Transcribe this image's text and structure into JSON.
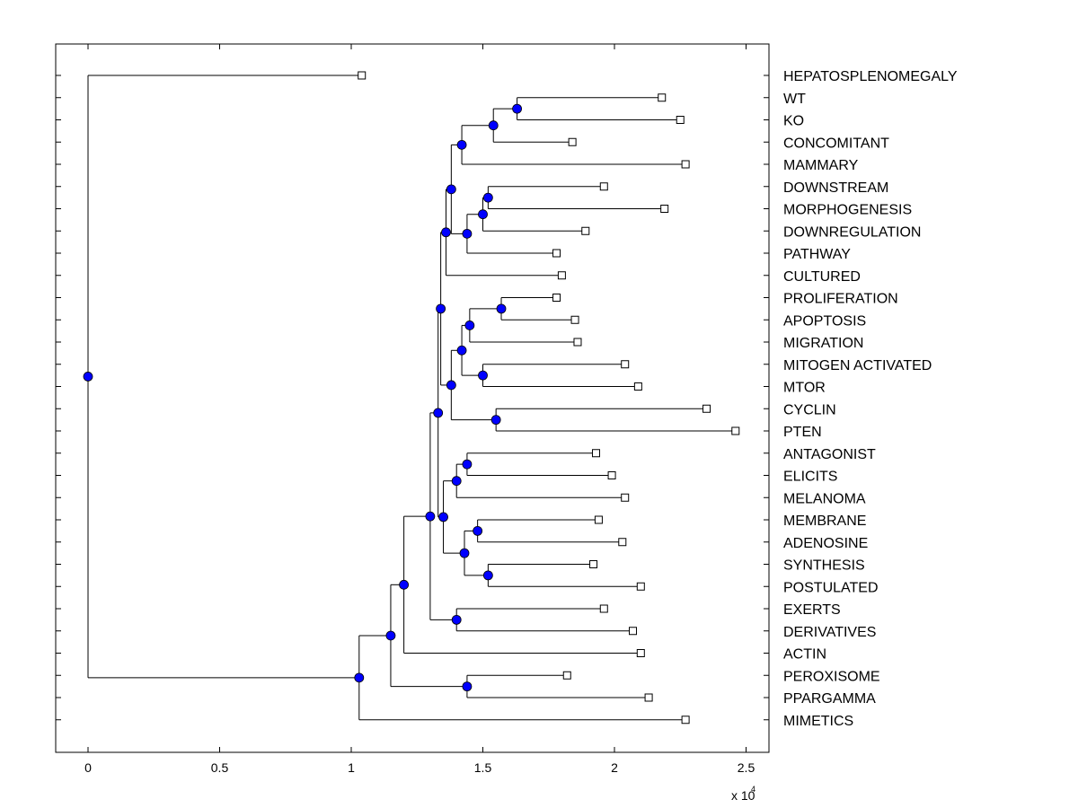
{
  "chart_data": {
    "type": "dendrogram",
    "title": "",
    "xlabel": "",
    "ylabel": "",
    "x_multiplier_base": "x 10",
    "x_multiplier_exponent": "4",
    "xlim": [
      -0.12,
      2.58
    ],
    "x_ticks": [
      {
        "value": 0,
        "label": "0"
      },
      {
        "value": 0.5,
        "label": "0.5"
      },
      {
        "value": 1,
        "label": "1"
      },
      {
        "value": 1.5,
        "label": "1.5"
      },
      {
        "value": 2,
        "label": "2"
      },
      {
        "value": 2.5,
        "label": "2.5"
      }
    ],
    "leaves": [
      {
        "id": "L1",
        "label": "HEPATOSPLENOMEGALY",
        "value": 1.04
      },
      {
        "id": "L2",
        "label": "WT",
        "value": 2.18
      },
      {
        "id": "L3",
        "label": "KO",
        "value": 2.25
      },
      {
        "id": "L4",
        "label": "CONCOMITANT",
        "value": 1.84
      },
      {
        "id": "L5",
        "label": "MAMMARY",
        "value": 2.27
      },
      {
        "id": "L6",
        "label": "DOWNSTREAM",
        "value": 1.96
      },
      {
        "id": "L7",
        "label": "MORPHOGENESIS",
        "value": 2.19
      },
      {
        "id": "L8",
        "label": "DOWNREGULATION",
        "value": 1.89
      },
      {
        "id": "L9",
        "label": "PATHWAY",
        "value": 1.78
      },
      {
        "id": "L10",
        "label": "CULTURED",
        "value": 1.8
      },
      {
        "id": "L11",
        "label": "PROLIFERATION",
        "value": 1.78
      },
      {
        "id": "L12",
        "label": "APOPTOSIS",
        "value": 1.85
      },
      {
        "id": "L13",
        "label": "MIGRATION",
        "value": 1.86
      },
      {
        "id": "L14",
        "label": "MITOGEN ACTIVATED",
        "value": 2.04
      },
      {
        "id": "L15",
        "label": "MTOR",
        "value": 2.09
      },
      {
        "id": "L16",
        "label": "CYCLIN",
        "value": 2.35
      },
      {
        "id": "L17",
        "label": "PTEN",
        "value": 2.46
      },
      {
        "id": "L18",
        "label": "ANTAGONIST",
        "value": 1.93
      },
      {
        "id": "L19",
        "label": "ELICITS",
        "value": 1.99
      },
      {
        "id": "L20",
        "label": "MELANOMA",
        "value": 2.04
      },
      {
        "id": "L21",
        "label": "MEMBRANE",
        "value": 1.94
      },
      {
        "id": "L22",
        "label": "ADENOSINE",
        "value": 2.03
      },
      {
        "id": "L23",
        "label": "SYNTHESIS",
        "value": 1.92
      },
      {
        "id": "L24",
        "label": "POSTULATED",
        "value": 2.1
      },
      {
        "id": "L25",
        "label": "EXERTS",
        "value": 1.96
      },
      {
        "id": "L26",
        "label": "DERIVATIVES",
        "value": 2.07
      },
      {
        "id": "L27",
        "label": "ACTIN",
        "value": 2.1
      },
      {
        "id": "L28",
        "label": "PEROXISOME",
        "value": 1.82
      },
      {
        "id": "L29",
        "label": "PPARGAMMA",
        "value": 2.13
      },
      {
        "id": "L30",
        "label": "MIMETICS",
        "value": 2.27
      }
    ],
    "nodes": [
      {
        "id": "n_wt_ko",
        "value": 1.63,
        "children": [
          "L2",
          "L3"
        ]
      },
      {
        "id": "n_conc",
        "value": 1.54,
        "children": [
          "n_wt_ko",
          "L4"
        ]
      },
      {
        "id": "n_mamm",
        "value": 1.42,
        "children": [
          "n_conc",
          "L5"
        ]
      },
      {
        "id": "n_down_morph",
        "value": 1.52,
        "children": [
          "L6",
          "L7"
        ]
      },
      {
        "id": "n_downreg",
        "value": 1.5,
        "children": [
          "n_down_morph",
          "L8"
        ]
      },
      {
        "id": "n_pathway",
        "value": 1.44,
        "children": [
          "n_downreg",
          "L9"
        ]
      },
      {
        "id": "n_A",
        "value": 1.38,
        "children": [
          "n_mamm",
          "n_pathway"
        ]
      },
      {
        "id": "n_cultured",
        "value": 1.36,
        "children": [
          "n_A",
          "L10"
        ]
      },
      {
        "id": "n_prolif_apop",
        "value": 1.57,
        "children": [
          "L11",
          "L12"
        ]
      },
      {
        "id": "n_migr",
        "value": 1.45,
        "children": [
          "n_prolif_apop",
          "L13"
        ]
      },
      {
        "id": "n_mito_mtor",
        "value": 1.5,
        "children": [
          "L14",
          "L15"
        ]
      },
      {
        "id": "n_B",
        "value": 1.42,
        "children": [
          "n_migr",
          "n_mito_mtor"
        ]
      },
      {
        "id": "n_cyc_pten",
        "value": 1.55,
        "children": [
          "L16",
          "L17"
        ]
      },
      {
        "id": "n_C",
        "value": 1.38,
        "children": [
          "n_B",
          "n_cyc_pten"
        ]
      },
      {
        "id": "n_D",
        "value": 1.34,
        "children": [
          "n_cultured",
          "n_C"
        ]
      },
      {
        "id": "n_ant_eli",
        "value": 1.44,
        "children": [
          "L18",
          "L19"
        ]
      },
      {
        "id": "n_mel",
        "value": 1.4,
        "children": [
          "n_ant_eli",
          "L20"
        ]
      },
      {
        "id": "n_mem_aden",
        "value": 1.48,
        "children": [
          "L21",
          "L22"
        ]
      },
      {
        "id": "n_syn_post",
        "value": 1.52,
        "children": [
          "L23",
          "L24"
        ]
      },
      {
        "id": "n_E",
        "value": 1.43,
        "children": [
          "n_mem_aden",
          "n_syn_post"
        ]
      },
      {
        "id": "n_F",
        "value": 1.35,
        "children": [
          "n_mel",
          "n_E"
        ]
      },
      {
        "id": "n_G",
        "value": 1.33,
        "children": [
          "n_D",
          "n_F"
        ]
      },
      {
        "id": "n_exe_der",
        "value": 1.4,
        "children": [
          "L25",
          "L26"
        ]
      },
      {
        "id": "n_H",
        "value": 1.3,
        "children": [
          "n_G",
          "n_exe_der"
        ]
      },
      {
        "id": "n_I",
        "value": 1.2,
        "children": [
          "n_H",
          "L27"
        ]
      },
      {
        "id": "n_pero_ppar",
        "value": 1.44,
        "children": [
          "L28",
          "L29"
        ]
      },
      {
        "id": "n_J",
        "value": 1.15,
        "children": [
          "n_I",
          "n_pero_ppar"
        ]
      },
      {
        "id": "n_K",
        "value": 1.03,
        "children": [
          "n_J",
          "L30"
        ]
      },
      {
        "id": "n_root",
        "value": 0.0,
        "children": [
          "L1",
          "n_K"
        ]
      }
    ],
    "root": "n_root",
    "colors": {
      "node_fill": "#0000ff",
      "leaf_fill": "#ffffff",
      "line": "#000000"
    }
  }
}
